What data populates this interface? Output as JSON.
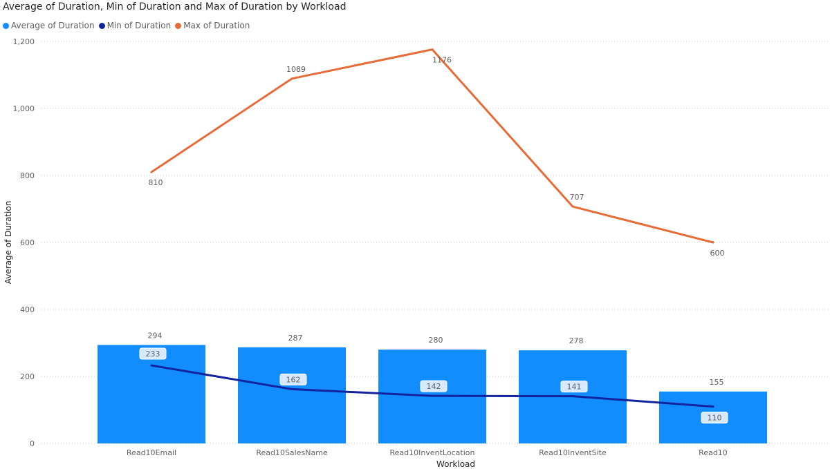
{
  "chart_data": {
    "type": "bar",
    "title": "Average of Duration, Min of Duration and Max of Duration by Workload",
    "xlabel": "Workload",
    "ylabel": "Average of Duration",
    "ylim": [
      0,
      1200
    ],
    "yticks": [
      0,
      200,
      400,
      600,
      800,
      1000,
      1200
    ],
    "ytick_labels": [
      "0",
      "200",
      "400",
      "600",
      "800",
      "1,000",
      "1,200"
    ],
    "grid": "horizontal dotted",
    "legend_position": "top-left",
    "categories": [
      "Read10Email",
      "Read10SalesName",
      "Read10InventLocation",
      "Read10InventSite",
      "Read10"
    ],
    "series": [
      {
        "name": "Average of  Duration",
        "type": "bar",
        "color": "#118dff",
        "values": [
          294,
          287,
          280,
          278,
          155
        ]
      },
      {
        "name": "Min of  Duration",
        "type": "line",
        "color": "#12239e",
        "values": [
          233,
          162,
          142,
          141,
          110
        ]
      },
      {
        "name": "Max of  Duration",
        "type": "line",
        "color": "#e66c37",
        "values": [
          810,
          1089,
          1176,
          707,
          600
        ]
      }
    ]
  }
}
